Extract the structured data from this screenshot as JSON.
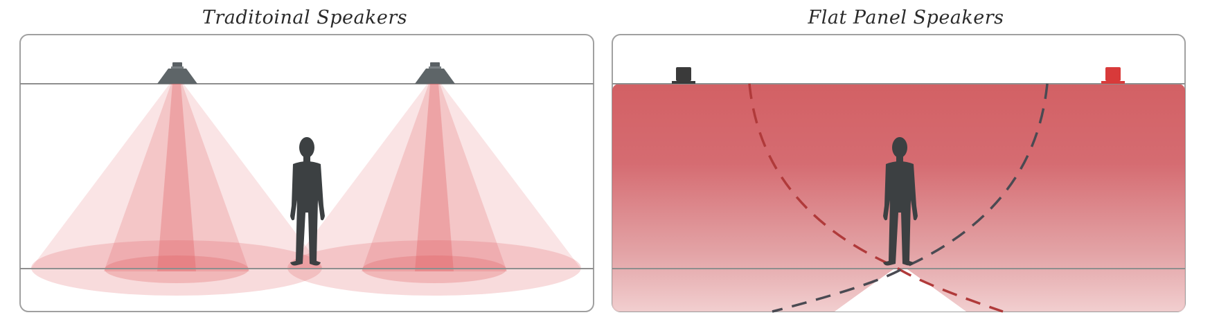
{
  "panels": {
    "left": {
      "title": "Traditoinal Speakers"
    },
    "right": {
      "title": "Flat Panel Speakers"
    }
  },
  "colors": {
    "sound_red": "#e05a5e",
    "field_red": "#d2666a",
    "person": "#3c4042",
    "frame": "#9a9a9a",
    "speaker_dark": "#3a3a3a",
    "speaker_red": "#d83a3a",
    "dash_dark": "#4a4a52",
    "dash_red": "#b03a3a"
  },
  "icons": {
    "ceiling_speaker": "ceiling-speaker-icon",
    "person": "person-icon",
    "flat_panel_speaker": "flat-panel-speaker-icon"
  }
}
